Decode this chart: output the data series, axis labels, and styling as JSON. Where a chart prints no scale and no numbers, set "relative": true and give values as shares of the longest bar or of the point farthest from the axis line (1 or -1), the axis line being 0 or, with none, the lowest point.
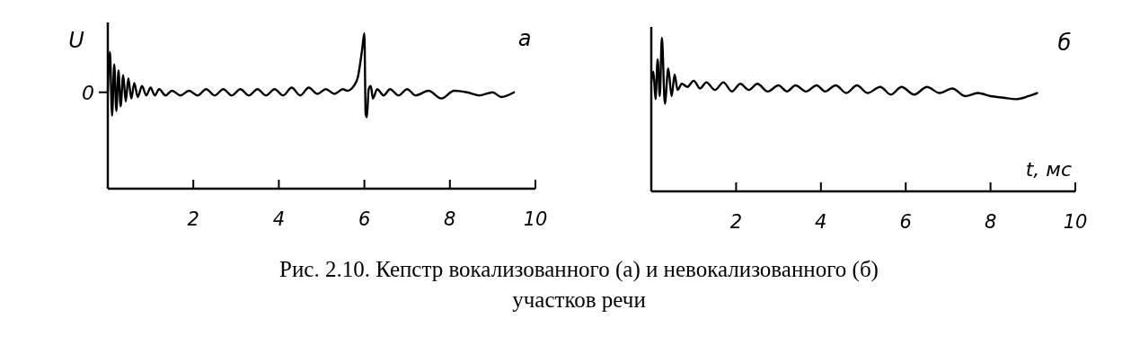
{
  "chart_data": [
    {
      "type": "line",
      "title": "a",
      "ylabel": "U",
      "relative": true,
      "xlim": [
        0,
        10
      ],
      "xticks": [
        2,
        4,
        6,
        8,
        10
      ],
      "color": "#000000",
      "annotations": [
        {
          "text": "0",
          "x": 0,
          "y": 0.62
        }
      ],
      "x": [
        0,
        0.05,
        0.1,
        0.15,
        0.2,
        0.25,
        0.3,
        0.36,
        0.42,
        0.48,
        0.55,
        0.62,
        0.7,
        0.8,
        0.9,
        1.0,
        1.1,
        1.2,
        1.35,
        1.5,
        1.7,
        1.9,
        2.1,
        2.3,
        2.5,
        2.7,
        2.9,
        3.1,
        3.3,
        3.5,
        3.7,
        3.9,
        4.1,
        4.3,
        4.5,
        4.7,
        4.9,
        5.1,
        5.3,
        5.5,
        5.6,
        5.75,
        5.85,
        5.95,
        6.0,
        6.03,
        6.06,
        6.1,
        6.15,
        6.2,
        6.3,
        6.45,
        6.6,
        6.8,
        7.0,
        7.2,
        7.5,
        7.8,
        8.1,
        8.4,
        8.7,
        9.0,
        9.2,
        9.5
      ],
      "values": [
        0.62,
        0.88,
        0.47,
        0.8,
        0.5,
        0.76,
        0.53,
        0.73,
        0.56,
        0.71,
        0.58,
        0.68,
        0.59,
        0.66,
        0.6,
        0.65,
        0.6,
        0.64,
        0.6,
        0.63,
        0.6,
        0.63,
        0.6,
        0.64,
        0.6,
        0.64,
        0.6,
        0.64,
        0.6,
        0.64,
        0.6,
        0.64,
        0.6,
        0.65,
        0.6,
        0.65,
        0.61,
        0.64,
        0.61,
        0.64,
        0.63,
        0.66,
        0.72,
        0.9,
        1.0,
        0.48,
        0.46,
        0.64,
        0.66,
        0.58,
        0.64,
        0.6,
        0.64,
        0.6,
        0.64,
        0.6,
        0.63,
        0.58,
        0.63,
        0.62,
        0.6,
        0.62,
        0.59,
        0.62
      ]
    },
    {
      "type": "line",
      "title": "б",
      "xlabel": "t, мс",
      "relative": true,
      "xlim": [
        0,
        10
      ],
      "xticks": [
        2,
        4,
        6,
        8,
        10
      ],
      "color": "#000000",
      "annotations": [
        "Рис. 2.10. Кепстр вокализованного (а) и невокализованного (б) участков речи"
      ],
      "x": [
        0,
        0.05,
        0.1,
        0.15,
        0.2,
        0.25,
        0.32,
        0.4,
        0.48,
        0.55,
        0.62,
        0.72,
        0.85,
        1.0,
        1.15,
        1.3,
        1.5,
        1.7,
        1.9,
        2.1,
        2.3,
        2.5,
        2.75,
        3.0,
        3.2,
        3.4,
        3.65,
        3.9,
        4.1,
        4.35,
        4.6,
        4.85,
        5.1,
        5.4,
        5.65,
        5.9,
        6.2,
        6.5,
        6.8,
        7.1,
        7.4,
        7.7,
        8.0,
        8.3,
        8.6,
        8.9,
        9.1
      ],
      "values": [
        0.71,
        0.78,
        0.6,
        0.86,
        0.62,
        1.0,
        0.57,
        0.8,
        0.62,
        0.76,
        0.66,
        0.7,
        0.68,
        0.72,
        0.67,
        0.71,
        0.66,
        0.71,
        0.65,
        0.7,
        0.66,
        0.7,
        0.65,
        0.69,
        0.65,
        0.69,
        0.65,
        0.69,
        0.65,
        0.69,
        0.64,
        0.69,
        0.64,
        0.68,
        0.63,
        0.68,
        0.63,
        0.68,
        0.64,
        0.67,
        0.62,
        0.64,
        0.62,
        0.61,
        0.6,
        0.62,
        0.64
      ]
    }
  ]
}
